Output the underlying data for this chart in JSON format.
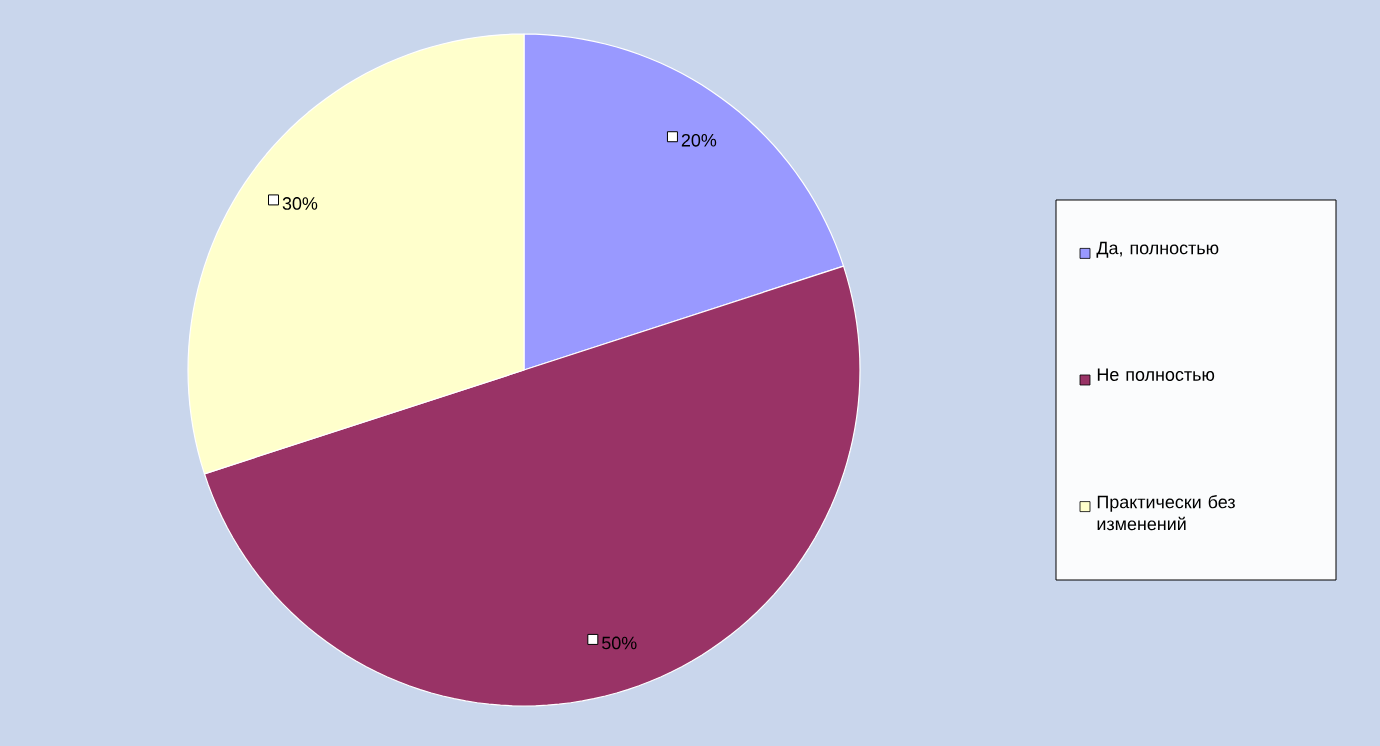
{
  "chart_data": {
    "type": "pie",
    "categories": [
      "Да, полностью",
      "Не полностью",
      "Практически без изменений"
    ],
    "values": [
      20,
      50,
      30
    ],
    "colors": [
      "#9999ff",
      "#993366",
      "#ffffcc"
    ],
    "value_labels": [
      "20%",
      "50%",
      "30%"
    ],
    "legend": "right"
  }
}
